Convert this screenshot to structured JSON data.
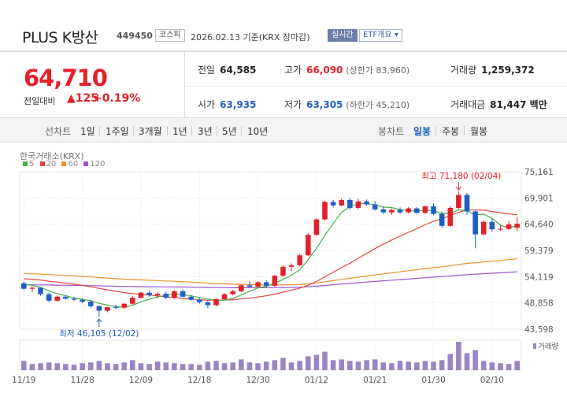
{
  "header": {
    "name": "PLUS K방산",
    "code": "449450",
    "market": "코스피",
    "date": "2026.02.13 기준(KRX 장마감)",
    "live": "실시간",
    "etf": "ETF개요 ▾"
  },
  "quote": {
    "price": "64,710",
    "change_label": "전일대비",
    "change": "▲125",
    "change_pct": "+0.19%",
    "prev_label": "전일",
    "prev": "64,585",
    "high_label": "고가",
    "high": "66,090",
    "upper_limit": "(상한가 83,960)",
    "volume_label": "거래량",
    "volume": "1,259,372",
    "open_label": "시가",
    "open": "63,935",
    "low_label": "저가",
    "low": "63,305",
    "lower_limit": "(하한가 45,210)",
    "amount_label": "거래대금",
    "amount": "81,447 백만"
  },
  "tabs": {
    "line_label": "선차트",
    "periods": [
      "1일",
      "1주일",
      "3개월",
      "1년",
      "3년",
      "5년",
      "10년"
    ],
    "candle_label": "봉차트",
    "candles": [
      "일봉",
      "주봉",
      "월봉"
    ],
    "active_candle": "일봉"
  },
  "chart_data": {
    "type": "candlestick",
    "source": "한국거래소(KRX)",
    "legend": [
      "5",
      "20",
      "60",
      "120"
    ],
    "colors": {
      "up": "#e3202a",
      "down": "#1f5fc1",
      "ma5": "#45b045",
      "ma20": "#e34646",
      "ma60": "#f0902a",
      "ma120": "#9a55c8"
    },
    "ylim": [
      43598,
      75161
    ],
    "yticks": [
      "75,161",
      "69,901",
      "64,640",
      "59,379",
      "54,119",
      "48,858",
      "43,598"
    ],
    "xticks": [
      "11/19",
      "11/28",
      "12/09",
      "12/18",
      "12/30",
      "01/12",
      "01/21",
      "01/30",
      "02/10"
    ],
    "xtick_index": [
      0,
      7,
      14,
      21,
      28,
      35,
      42,
      49,
      56
    ],
    "max_label": "최고 71,180 (02/04)",
    "max_value": 71180,
    "max_index": 52,
    "min_label": "최저 46,105 (12/02)",
    "min_value": 46105,
    "min_index": 9,
    "volume_label": "거래량",
    "candles": [
      [
        52800,
        53100,
        51500,
        51700
      ],
      [
        51700,
        52300,
        51000,
        51900
      ],
      [
        51900,
        52000,
        50300,
        50600
      ],
      [
        50600,
        50900,
        49000,
        49300
      ],
      [
        49300,
        50300,
        49100,
        50100
      ],
      [
        50100,
        50400,
        49500,
        49700
      ],
      [
        49700,
        50100,
        49200,
        49500
      ],
      [
        49500,
        49800,
        48800,
        49100
      ],
      [
        49100,
        49400,
        47900,
        48200
      ],
      [
        48200,
        48400,
        46105,
        47300
      ],
      [
        47300,
        48100,
        47000,
        48000
      ],
      [
        48000,
        48500,
        47600,
        47900
      ],
      [
        47900,
        48800,
        47700,
        48700
      ],
      [
        48700,
        50200,
        48500,
        49900
      ],
      [
        49900,
        51100,
        49700,
        50900
      ],
      [
        50900,
        51300,
        50100,
        50400
      ],
      [
        50400,
        51000,
        49800,
        50700
      ],
      [
        50700,
        51100,
        49600,
        49900
      ],
      [
        49900,
        51400,
        49700,
        51200
      ],
      [
        51200,
        51500,
        50000,
        50100
      ],
      [
        50100,
        50400,
        49300,
        49500
      ],
      [
        49500,
        49900,
        48700,
        49000
      ],
      [
        49000,
        49300,
        47800,
        48400
      ],
      [
        48400,
        49800,
        48200,
        49600
      ],
      [
        49600,
        50800,
        49400,
        50600
      ],
      [
        50600,
        51500,
        50400,
        51200
      ],
      [
        51200,
        52600,
        51000,
        52400
      ],
      [
        52400,
        53300,
        51900,
        52100
      ],
      [
        52100,
        53200,
        51800,
        53000
      ],
      [
        53000,
        53400,
        52000,
        52300
      ],
      [
        52300,
        54500,
        52100,
        54300
      ],
      [
        54300,
        56400,
        54100,
        56100
      ],
      [
        56100,
        56800,
        55200,
        56400
      ],
      [
        56400,
        58700,
        56200,
        58400
      ],
      [
        58400,
        62800,
        58200,
        62500
      ],
      [
        62500,
        65900,
        62300,
        65600
      ],
      [
        65600,
        69300,
        65400,
        69100
      ],
      [
        69100,
        69500,
        68000,
        68400
      ],
      [
        68400,
        69800,
        68200,
        69500
      ],
      [
        69500,
        69900,
        67500,
        67900
      ],
      [
        67900,
        69700,
        67600,
        69200
      ],
      [
        69200,
        69600,
        68300,
        68600
      ],
      [
        68600,
        69300,
        67400,
        67600
      ],
      [
        67600,
        68200,
        66600,
        67000
      ],
      [
        67000,
        67800,
        66500,
        67500
      ],
      [
        67500,
        68000,
        66700,
        67000
      ],
      [
        67000,
        68100,
        66800,
        67800
      ],
      [
        67800,
        68100,
        66700,
        66900
      ],
      [
        66900,
        68400,
        66700,
        68200
      ],
      [
        68200,
        68800,
        66400,
        66700
      ],
      [
        66700,
        67200,
        63900,
        64300
      ],
      [
        64300,
        68200,
        64100,
        67900
      ],
      [
        67900,
        71180,
        67600,
        70500
      ],
      [
        70500,
        70900,
        66500,
        67200
      ],
      [
        67200,
        67600,
        59800,
        62600
      ],
      [
        62600,
        65400,
        62400,
        65100
      ],
      [
        65100,
        65800,
        63100,
        63600
      ],
      [
        63600,
        64600,
        63300,
        63700
      ],
      [
        63700,
        65300,
        63500,
        64585
      ],
      [
        63935,
        66090,
        63305,
        64710
      ]
    ],
    "volumes": [
      12,
      8,
      9,
      10,
      9,
      8,
      7,
      9,
      10,
      12,
      9,
      8,
      10,
      13,
      9,
      8,
      11,
      10,
      9,
      8,
      8,
      7,
      11,
      12,
      9,
      10,
      14,
      10,
      9,
      11,
      13,
      16,
      10,
      12,
      18,
      20,
      24,
      13,
      14,
      12,
      11,
      13,
      14,
      10,
      9,
      12,
      11,
      10,
      12,
      11,
      13,
      21,
      37,
      22,
      26,
      12,
      10,
      9,
      8,
      12
    ]
  }
}
